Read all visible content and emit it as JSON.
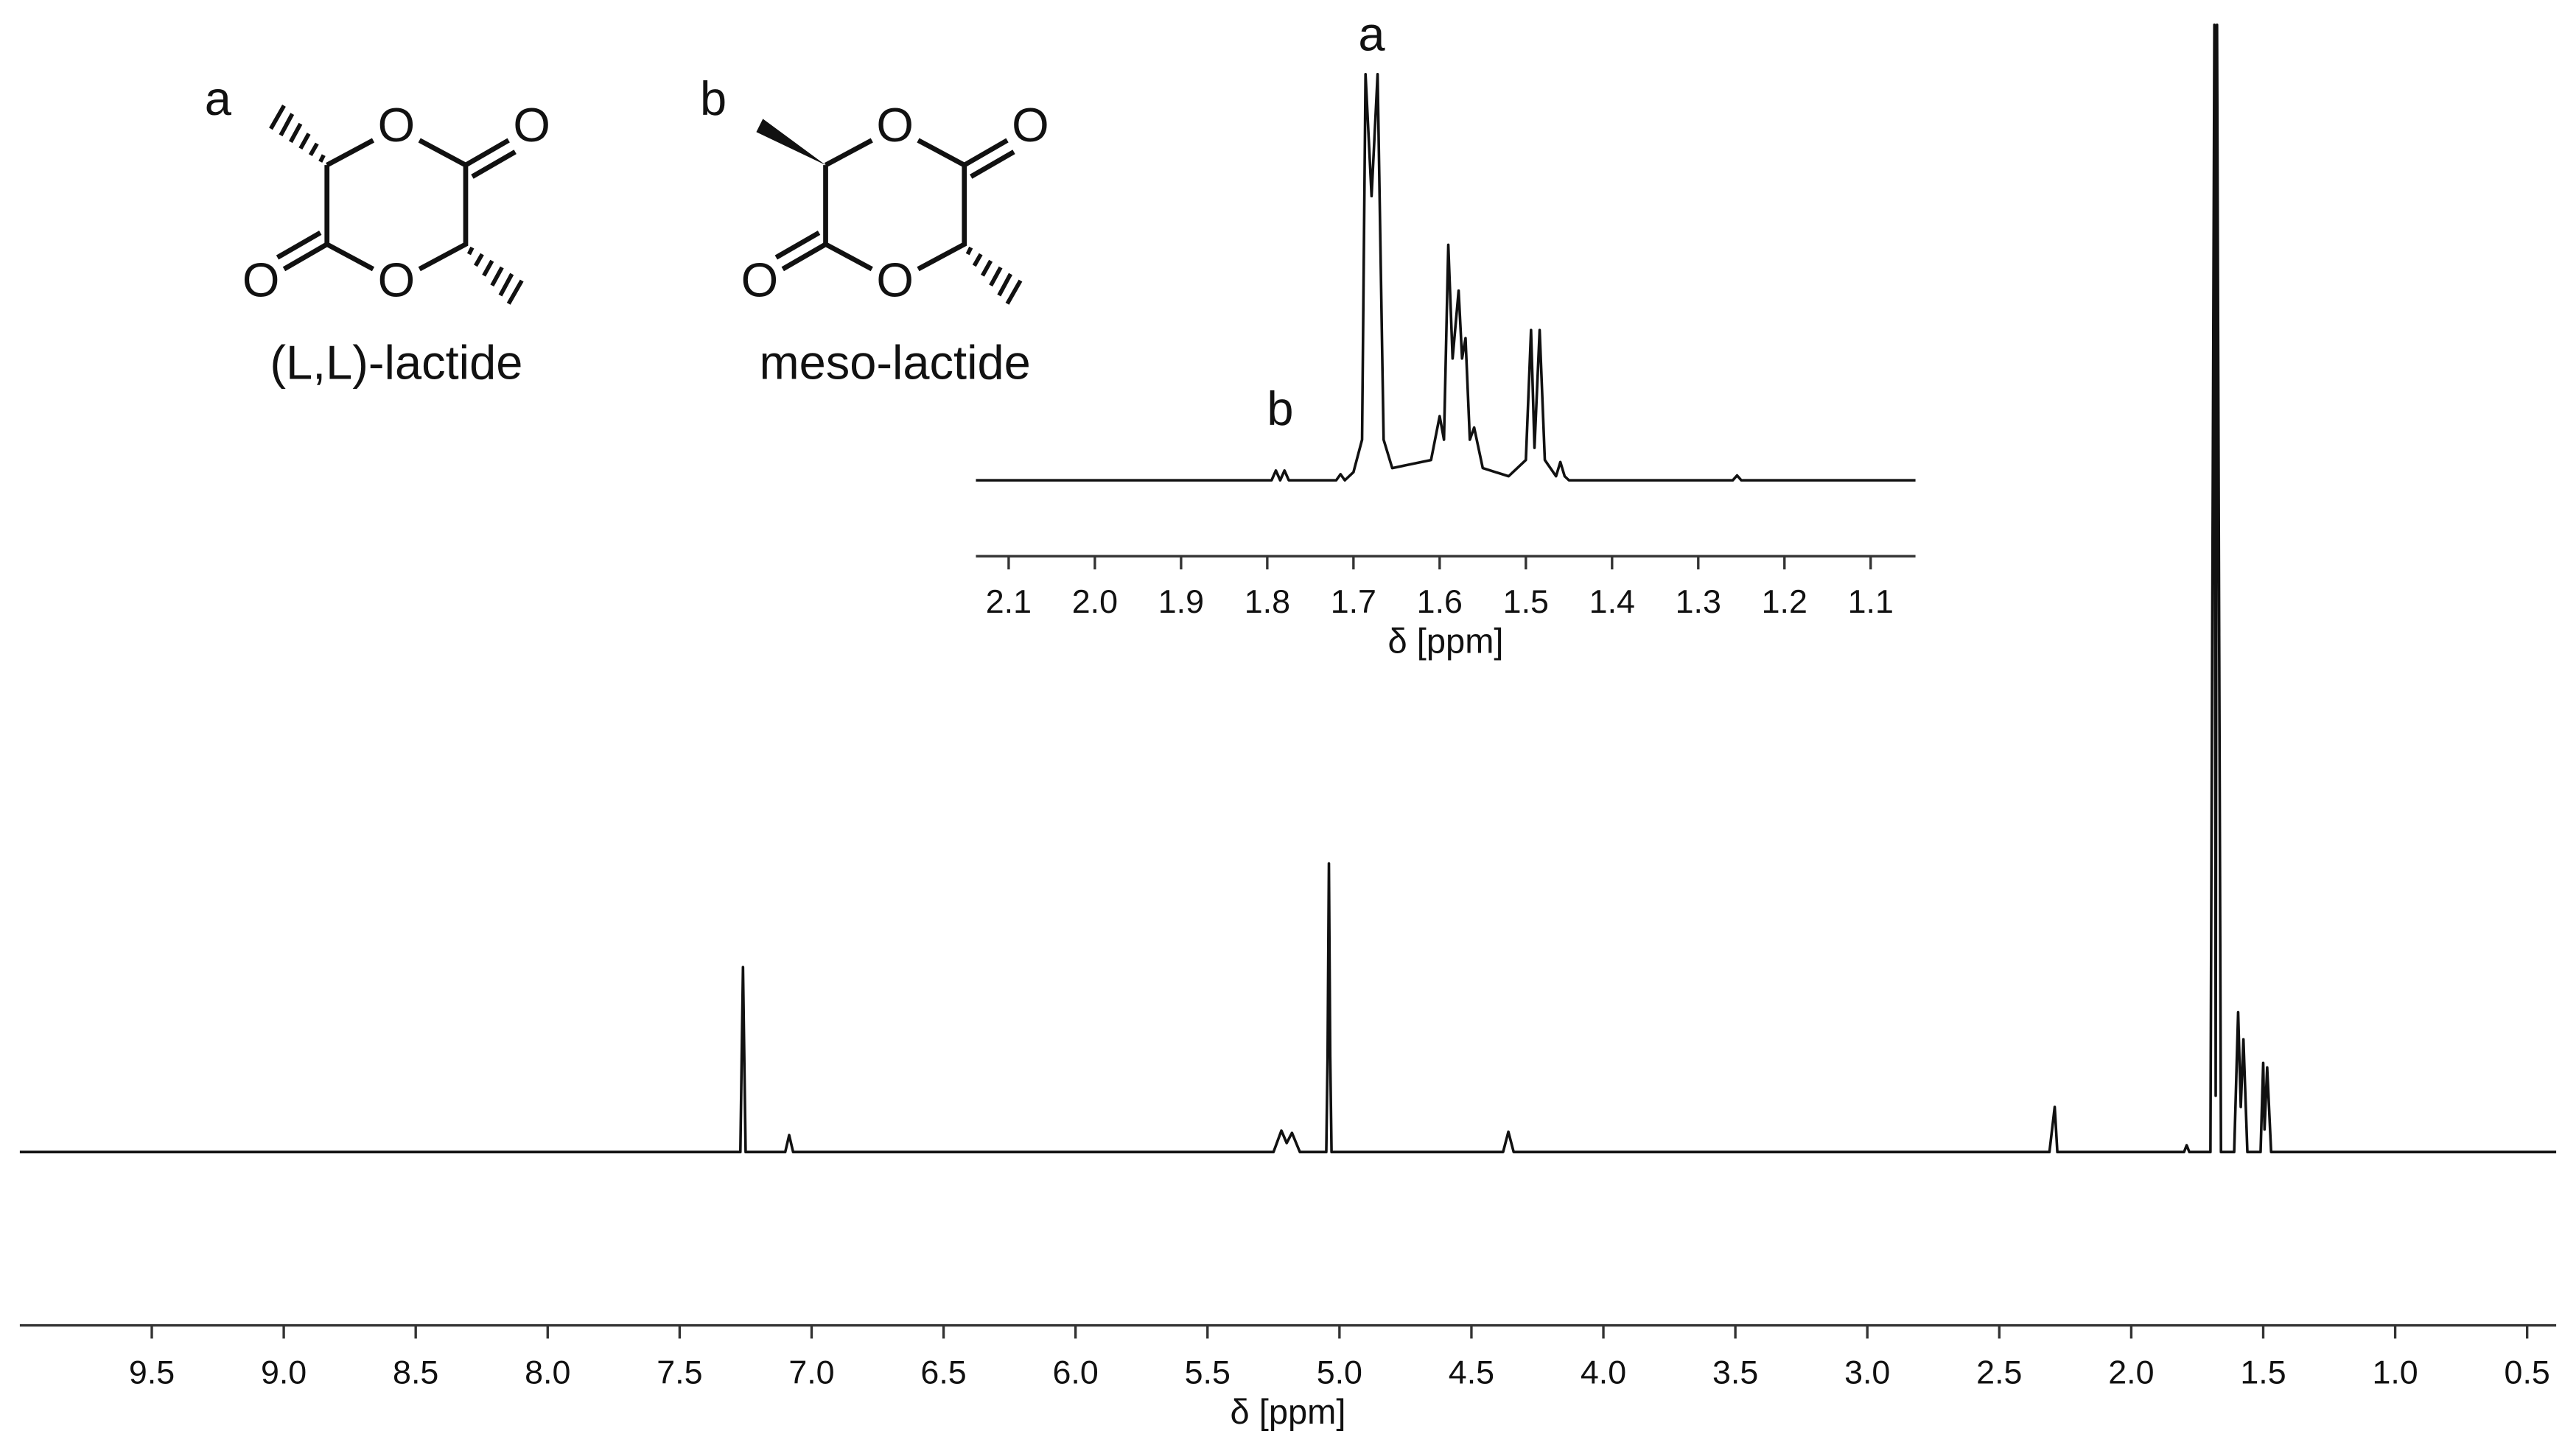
{
  "chart_data": [
    {
      "type": "line",
      "color": "#111111",
      "xlabel": "δ [ppm]",
      "xlim": [
        10.0,
        0.39
      ],
      "ylim": [
        0,
        100
      ],
      "xticks": [
        9.5,
        {
          "value": 9,
          "label": "9.0"
        },
        8.5,
        {
          "value": 8,
          "label": "8.0"
        },
        7.5,
        {
          "value": 7,
          "label": "7.0"
        },
        6.5,
        {
          "value": 6,
          "label": "6.0"
        },
        5.5,
        {
          "value": 5,
          "label": "5.0"
        },
        4.5,
        {
          "value": 4,
          "label": "4.0"
        },
        3.5,
        {
          "value": 3,
          "label": "3.0"
        },
        2.5,
        {
          "value": 2,
          "label": "2.0"
        },
        1.5,
        {
          "value": 1,
          "label": "1.0"
        },
        0.5
      ],
      "x": [
        10.0,
        7.3,
        7.27,
        7.26,
        7.25,
        7.1,
        7.085,
        7.07,
        5.25,
        5.22,
        5.2,
        5.18,
        5.15,
        5.05,
        5.045,
        5.04,
        5.035,
        5.03,
        4.38,
        4.36,
        4.34,
        2.31,
        2.29,
        2.28,
        1.8,
        1.79,
        1.78,
        1.7,
        1.685,
        1.68,
        1.675,
        1.66,
        1.61,
        1.595,
        1.585,
        1.575,
        1.56,
        1.51,
        1.5,
        1.495,
        1.485,
        1.47,
        0.39
      ],
      "values": [
        0,
        0,
        0,
        16.4,
        0,
        0,
        1.5,
        0,
        0,
        1.9,
        0.8,
        1.7,
        0,
        0,
        8.5,
        25.6,
        8.5,
        0,
        0,
        1.8,
        0,
        0,
        4,
        0,
        0,
        0.6,
        0,
        0,
        100,
        5,
        100,
        0,
        0,
        12.4,
        4,
        10,
        0,
        0,
        7.9,
        2,
        7.5,
        0,
        0
      ]
    },
    {
      "type": "line",
      "color": "#111111",
      "xlabel": "δ [ppm]",
      "xlim": [
        2.138,
        1.048
      ],
      "ylim": [
        0,
        100
      ],
      "xticks": [
        2.1,
        {
          "value": 2,
          "label": "2.0"
        },
        1.9,
        1.8,
        1.7,
        1.6,
        1.5,
        1.4,
        1.3,
        1.2,
        1.1
      ],
      "x": [
        2.138,
        1.795,
        1.79,
        1.785,
        1.78,
        1.775,
        1.72,
        1.715,
        1.71,
        1.7,
        1.69,
        1.686,
        1.679,
        1.672,
        1.665,
        1.655,
        1.61,
        1.6,
        1.595,
        1.59,
        1.585,
        1.578,
        1.574,
        1.57,
        1.565,
        1.56,
        1.55,
        1.52,
        1.5,
        1.494,
        1.49,
        1.484,
        1.478,
        1.465,
        1.46,
        1.455,
        1.45,
        1.26,
        1.255,
        1.25,
        1.048
      ],
      "values": [
        0,
        0,
        2.4,
        0,
        2.4,
        0,
        0,
        1.5,
        0,
        2,
        10,
        100,
        70,
        100,
        10,
        3,
        5,
        15.8,
        10,
        58,
        30,
        46.7,
        30,
        35,
        10,
        13,
        3,
        1,
        5,
        37,
        8,
        37,
        5,
        1,
        4.5,
        1,
        0,
        0,
        1.2,
        0,
        0
      ],
      "annotations": [
        {
          "text": "a",
          "x": 1.679,
          "y": 109
        },
        {
          "text": "b",
          "x": 1.785,
          "y": 16.7
        }
      ]
    }
  ],
  "structures": [
    {
      "label": "(L,L)-lactide",
      "substituent": "a",
      "atoms": [
        "O",
        "O",
        "O",
        "O"
      ]
    },
    {
      "label": "meso-lactide",
      "substituent": "b",
      "atoms": [
        "O",
        "O",
        "O",
        "O"
      ]
    }
  ]
}
